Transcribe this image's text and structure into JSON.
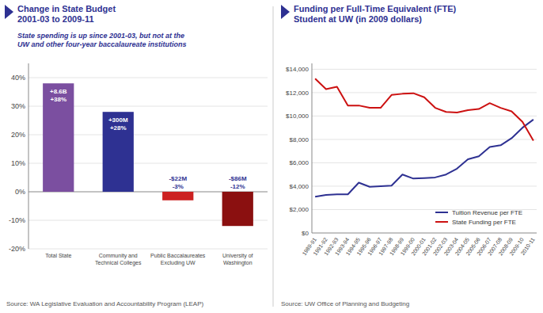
{
  "chart_data": [
    {
      "type": "bar",
      "title": "Change in State Budget\n2001-03 to 2009-11",
      "subtitle": "State spending is up since 2001-03, but not at the\nUW and other four-year baccalaureate institutions",
      "annotations": [
        "Source: WA Legislative Evaluation and Accountability Program (LEAP)"
      ],
      "categories": [
        "Total State",
        "Community and\nTechnical Colleges",
        "Public Baccalaureates\nExcluding UW",
        "University of\nWashington"
      ],
      "values": [
        38,
        28,
        -3,
        -12
      ],
      "value_labels": [
        "+8.6B\n+38%",
        "+300M\n+28%",
        "-$22M\n-3%",
        "-$86M\n-12%"
      ],
      "colors": [
        "#7b4fa0",
        "#2e3192",
        "#cc2222",
        "#8b1010"
      ],
      "ylim": [
        -20,
        45
      ],
      "yticks": [
        {
          "value": -20,
          "label": "-20%"
        },
        {
          "value": -10,
          "label": "-10%"
        },
        {
          "value": 0,
          "label": "0%"
        },
        {
          "value": 10,
          "label": "10%"
        },
        {
          "value": 20,
          "label": "20%"
        },
        {
          "value": 30,
          "label": "30%"
        },
        {
          "value": 40,
          "label": "40%"
        }
      ],
      "grid": true
    },
    {
      "type": "line",
      "title": "Funding per Full-Time Equivalent (FTE)\nStudent  at UW (in 2009 dollars)",
      "annotations": [
        "Source: UW Office of Planning and Budgeting"
      ],
      "categories": [
        "1989-91",
        "1991-92",
        "1992-93",
        "1993-94",
        "1994-95",
        "1995-96",
        "1996-97",
        "1997-98",
        "1998-99",
        "1999-00",
        "2000-01",
        "2001-02",
        "2002-03",
        "2003-04",
        "2004-05",
        "2005-06",
        "2006-07",
        "2007-08",
        "2008-09",
        "2009-10",
        "2010-11"
      ],
      "series": [
        {
          "name": "Tuition Revenue per FTE",
          "color": "#2e3192",
          "values": [
            3100,
            3250,
            3300,
            3300,
            4300,
            3950,
            4000,
            4050,
            5000,
            4650,
            4700,
            4750,
            5000,
            5500,
            6300,
            6550,
            7350,
            7500,
            8100,
            9000,
            9700
          ]
        },
        {
          "name": "State Funding per FTE",
          "color": "#cc1111",
          "values": [
            13200,
            12300,
            12500,
            10900,
            10900,
            10700,
            10700,
            11800,
            11900,
            11950,
            11600,
            10700,
            10350,
            10300,
            10500,
            10600,
            11100,
            10700,
            10400,
            9500,
            7900
          ]
        }
      ],
      "ylim": [
        0,
        14500
      ],
      "yticks": [
        {
          "value": 0,
          "label": "$0"
        },
        {
          "value": 2000,
          "label": "$2,000"
        },
        {
          "value": 4000,
          "label": "$4,000"
        },
        {
          "value": 6000,
          "label": "$6,000"
        },
        {
          "value": 8000,
          "label": "$8,000"
        },
        {
          "value": 10000,
          "label": "$10,000"
        },
        {
          "value": 12000,
          "label": "$12,000"
        },
        {
          "value": 14000,
          "label": "$14,000"
        }
      ],
      "grid": true,
      "legend": "lower right"
    }
  ]
}
